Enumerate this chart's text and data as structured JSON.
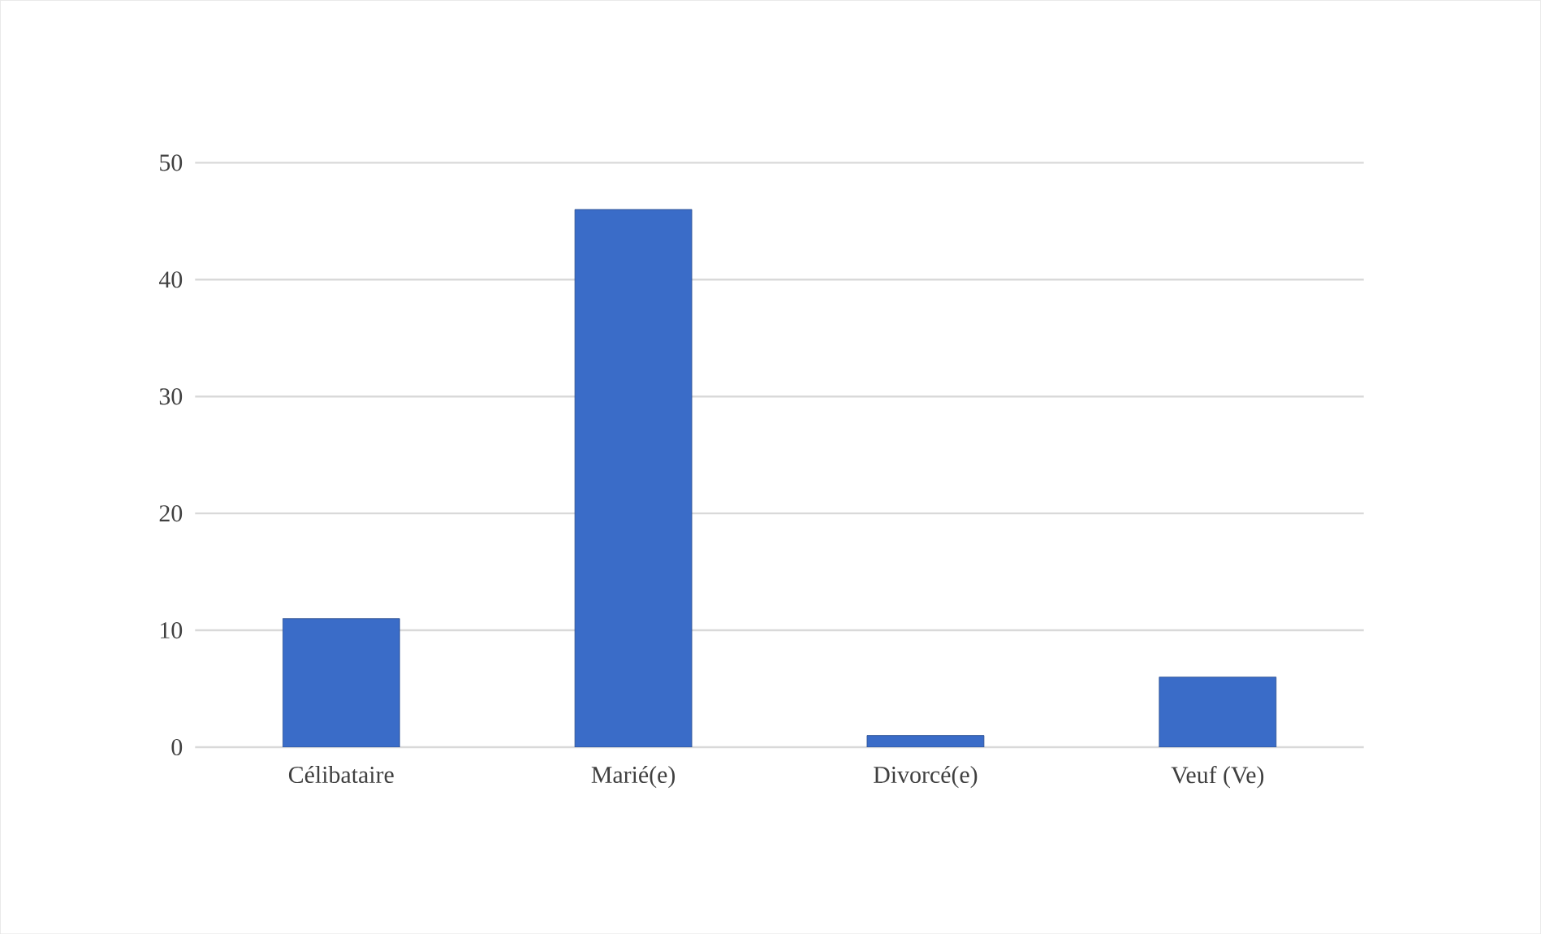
{
  "chart_data": {
    "type": "bar",
    "categories": [
      "Célibataire",
      "Marié(e)",
      "Divorcé(e)",
      "Veuf (Ve)"
    ],
    "values": [
      11,
      46,
      1,
      6
    ],
    "color": "#3a6cc8",
    "ylim": [
      0,
      50
    ],
    "yticks": [
      0,
      10,
      20,
      30,
      40,
      50
    ],
    "grid": "y"
  }
}
